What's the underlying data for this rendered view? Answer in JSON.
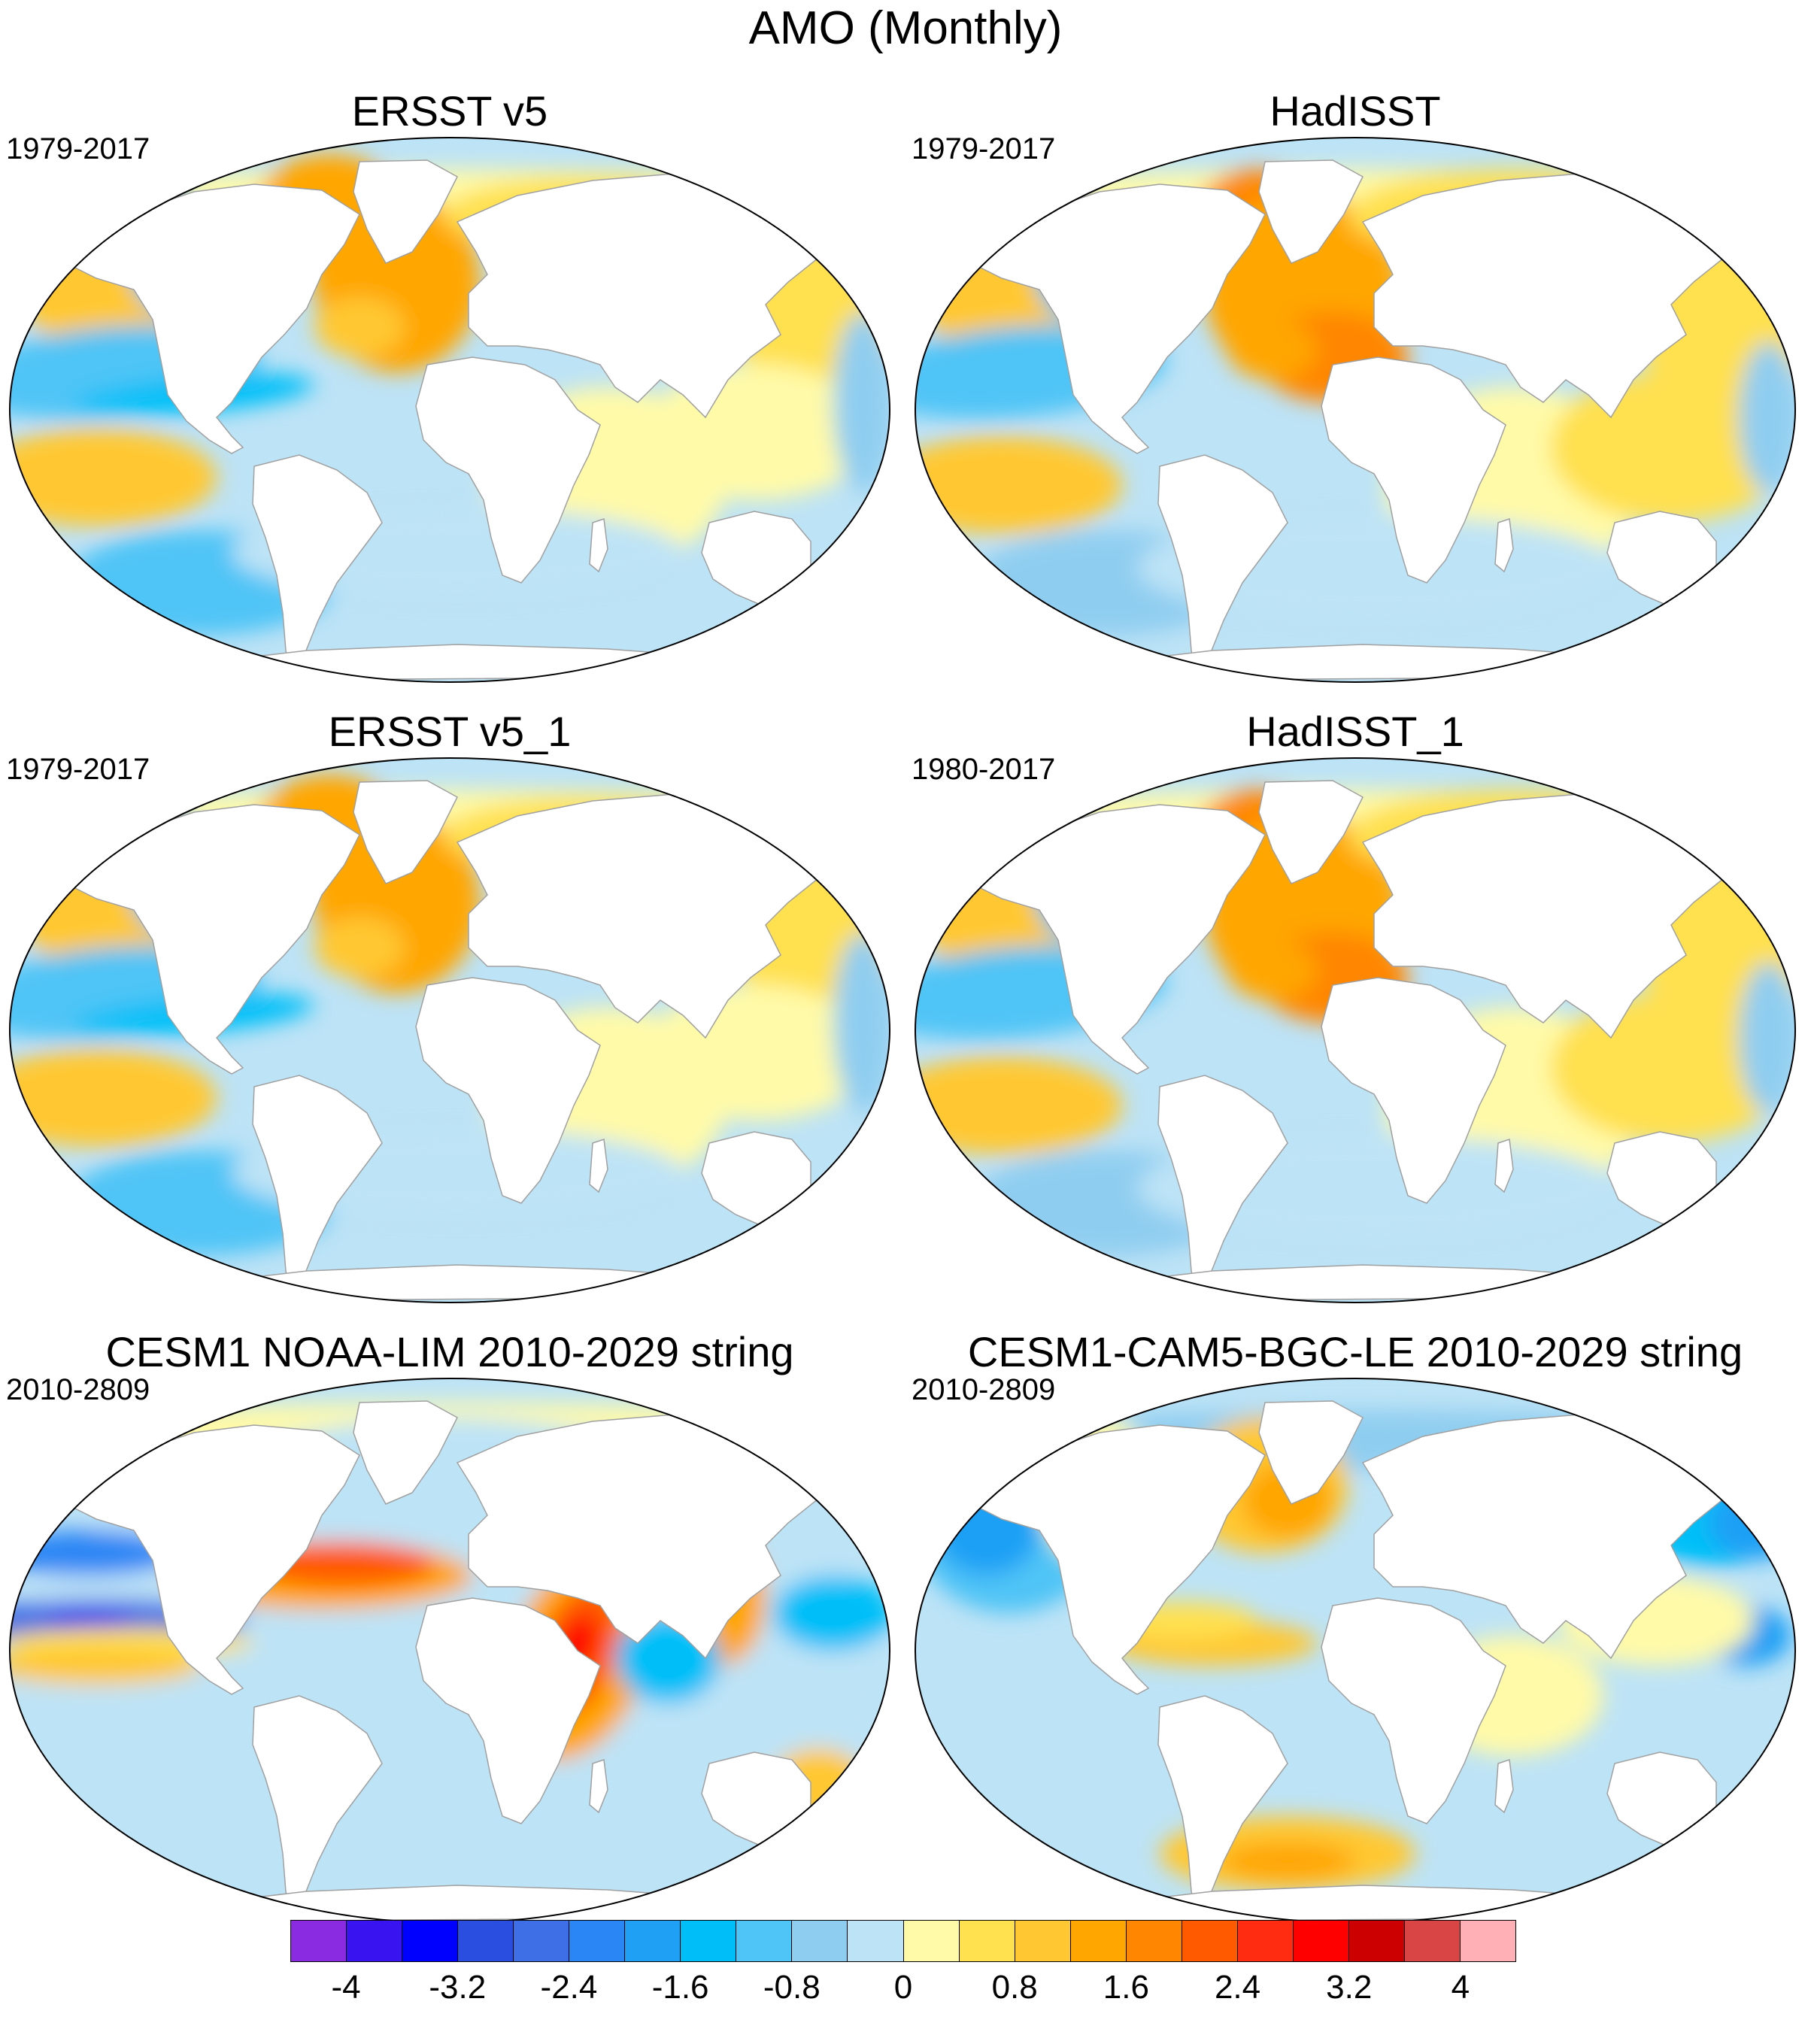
{
  "title": "AMO (Monthly)",
  "panels": [
    {
      "title": "ERSST v5",
      "years": "1979-2017",
      "style": "obs_coarse"
    },
    {
      "title": "HadISST",
      "years": "1979-2017",
      "style": "obs_fine"
    },
    {
      "title": "ERSST v5_1",
      "years": "1979-2017",
      "style": "obs_coarse"
    },
    {
      "title": "HadISST_1",
      "years": "1980-2017",
      "style": "obs_fine"
    },
    {
      "title": "CESM1 NOAA-LIM 2010-2029 string",
      "years": "2010-2809",
      "style": "lim"
    },
    {
      "title": "CESM1-CAM5-BGC-LE 2010-2029 string",
      "years": "2010-2809",
      "style": "le"
    }
  ],
  "colorbar": {
    "colors": [
      "#8a2be2",
      "#3a14f0",
      "#0000ff",
      "#2a4fe0",
      "#3f6fe6",
      "#2a86f5",
      "#1fa0f5",
      "#00bff8",
      "#4fc4f6",
      "#8fcdf0",
      "#bde3f6",
      "#fffaa8",
      "#ffe04f",
      "#ffc833",
      "#ffa600",
      "#ff8600",
      "#ff5a00",
      "#ff2c12",
      "#ff0000",
      "#cc0000",
      "#d94444",
      "#ffb0b6"
    ],
    "labels": [
      "-4",
      "-3.2",
      "-2.4",
      "-1.6",
      "-0.8",
      "0",
      "0.8",
      "1.6",
      "2.4",
      "3.2",
      "4"
    ]
  },
  "colors": {
    "land": "#ffffff",
    "coast": "#a0a0a0",
    "neutral": "#bde3f6"
  }
}
